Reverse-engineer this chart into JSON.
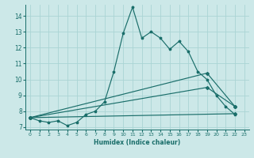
{
  "xlabel": "Humidex (Indice chaleur)",
  "bg_color": "#cce8e8",
  "grid_color": "#aad4d4",
  "line_color": "#1a6e6a",
  "xlim": [
    -0.5,
    23.5
  ],
  "ylim": [
    6.85,
    14.7
  ],
  "xticks": [
    0,
    1,
    2,
    3,
    4,
    5,
    6,
    7,
    8,
    9,
    10,
    11,
    12,
    13,
    14,
    15,
    16,
    17,
    18,
    19,
    20,
    21,
    22,
    23
  ],
  "yticks": [
    7,
    8,
    9,
    10,
    11,
    12,
    13,
    14
  ],
  "series1_x": [
    0,
    1,
    2,
    3,
    4,
    5,
    6,
    7,
    8,
    9,
    10,
    11,
    12,
    13,
    14,
    15,
    16,
    17,
    18,
    19,
    20,
    21,
    22
  ],
  "series1_y": [
    7.6,
    7.4,
    7.3,
    7.4,
    7.1,
    7.3,
    7.8,
    8.0,
    8.6,
    10.5,
    12.9,
    14.55,
    12.6,
    13.0,
    12.6,
    11.9,
    12.4,
    11.75,
    10.5,
    10.0,
    9.0,
    8.3,
    7.8
  ],
  "line2_x": [
    0,
    22
  ],
  "line2_y": [
    7.6,
    7.85
  ],
  "line3_x": [
    0,
    19,
    22
  ],
  "line3_y": [
    7.6,
    10.4,
    8.3
  ],
  "line4_x": [
    0,
    19,
    22
  ],
  "line4_y": [
    7.6,
    9.5,
    8.3
  ]
}
